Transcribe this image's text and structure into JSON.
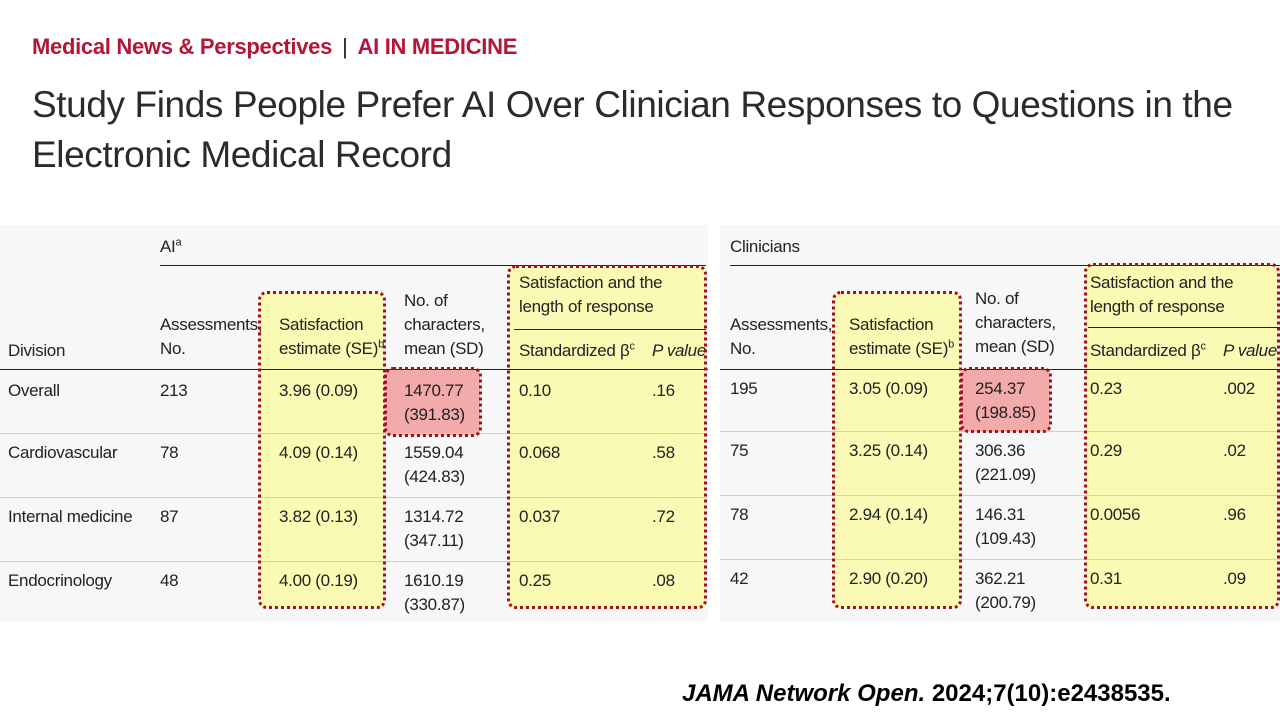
{
  "kicker": {
    "section": "Medical News & Perspectives",
    "separator": "|",
    "topic": "AI IN MEDICINE"
  },
  "title": "Study Finds People Prefer AI Over Clinician Responses to Questions in the Electronic Medical Record",
  "highlight_colors": {
    "yellow": "#fafab4",
    "red": "#f2aaaa",
    "border": "#a31018"
  },
  "ai_table": {
    "group_label": "AI",
    "group_sup": "a",
    "division_header": "Division",
    "col_assessments": [
      "Assessments,",
      "No."
    ],
    "col_satisfaction": [
      "Satisfaction",
      "estimate (SE)"
    ],
    "col_satisfaction_sup": "b",
    "col_characters": [
      "No. of",
      "characters,",
      "mean (SD)"
    ],
    "col_length_group": [
      "Satisfaction and the",
      "length of response"
    ],
    "col_beta": "Standardized β",
    "col_beta_sup": "c",
    "col_pvalue": "P value",
    "rows": [
      {
        "division": "Overall",
        "assessments": "213",
        "satisfaction": "3.96 (0.09)",
        "chars_mean": "1470.77",
        "chars_sd": "(391.83)",
        "beta": "0.10",
        "p": ".16"
      },
      {
        "division": "Cardiovascular",
        "assessments": "78",
        "satisfaction": "4.09 (0.14)",
        "chars_mean": "1559.04",
        "chars_sd": "(424.83)",
        "beta": "0.068",
        "p": ".58"
      },
      {
        "division": "Internal medicine",
        "assessments": "87",
        "satisfaction": "3.82 (0.13)",
        "chars_mean": "1314.72",
        "chars_sd": "(347.11)",
        "beta": "0.037",
        "p": ".72"
      },
      {
        "division": "Endocrinology",
        "assessments": "48",
        "satisfaction": "4.00 (0.19)",
        "chars_mean": "1610.19",
        "chars_sd": "(330.87)",
        "beta": "0.25",
        "p": ".08"
      }
    ]
  },
  "clin_table": {
    "group_label": "Clinicians",
    "col_assessments": [
      "Assessments,",
      "No."
    ],
    "col_satisfaction": [
      "Satisfaction",
      "estimate (SE)"
    ],
    "col_satisfaction_sup": "b",
    "col_characters": [
      "No. of",
      "characters,",
      "mean (SD)"
    ],
    "col_length_group": [
      "Satisfaction and the",
      "length of response"
    ],
    "col_beta": "Standardized β",
    "col_beta_sup": "c",
    "col_pvalue": "P value",
    "rows": [
      {
        "assessments": "195",
        "satisfaction": "3.05 (0.09)",
        "chars_mean": "254.37",
        "chars_sd": "(198.85)",
        "beta": "0.23",
        "p": ".002"
      },
      {
        "assessments": "75",
        "satisfaction": "3.25 (0.14)",
        "chars_mean": "306.36",
        "chars_sd": "(221.09)",
        "beta": "0.29",
        "p": ".02"
      },
      {
        "assessments": "78",
        "satisfaction": "2.94 (0.14)",
        "chars_mean": "146.31",
        "chars_sd": "(109.43)",
        "beta": "0.0056",
        "p": ".96"
      },
      {
        "assessments": "42",
        "satisfaction": "2.90 (0.20)",
        "chars_mean": "362.21",
        "chars_sd": "(200.79)",
        "beta": "0.31",
        "p": ".09"
      }
    ]
  },
  "citation": {
    "journal": "JAMA Network Open.",
    "ref": "2024;7(10):e2438535."
  }
}
